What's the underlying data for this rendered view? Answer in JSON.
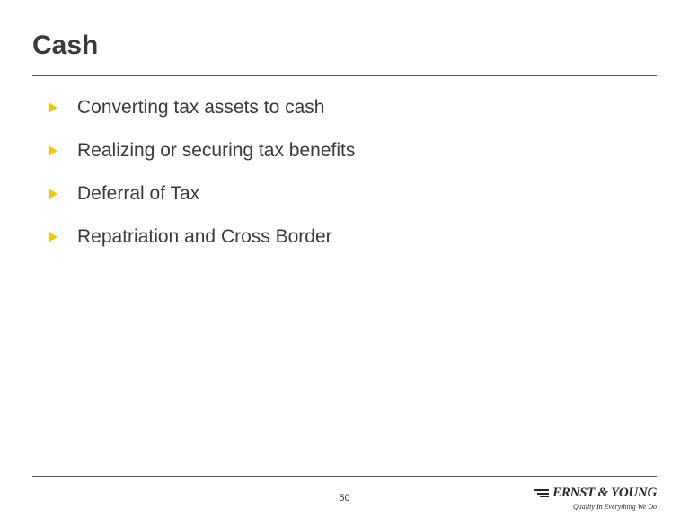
{
  "slide": {
    "title": "Cash",
    "bullets": [
      "Converting tax assets to cash",
      "Realizing or securing tax benefits",
      "Deferral of Tax",
      "Repatriation and Cross Border"
    ],
    "page_number": "50",
    "bullet_color": "#f0c800",
    "rule_color": "#5a5a5a",
    "text_color": "#3a3a3a",
    "title_fontsize": 30,
    "bullet_fontsize": 21
  },
  "logo": {
    "company": "ERNST & YOUNG",
    "tagline": "Quality In Everything We Do"
  }
}
